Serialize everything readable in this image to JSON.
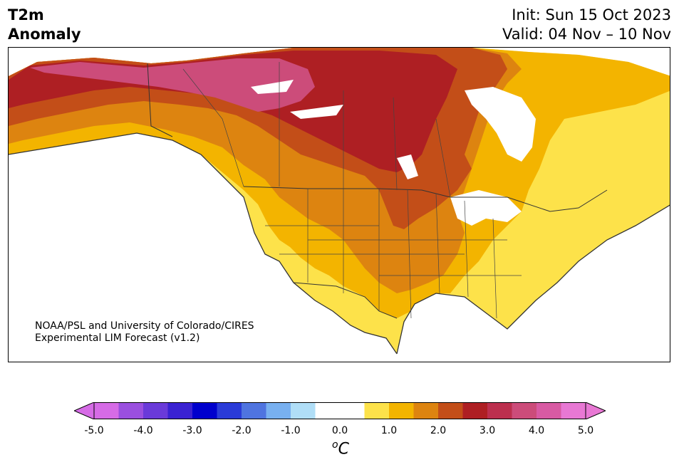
{
  "header": {
    "title_line1": "T2m",
    "title_line2": "Anomaly",
    "init_text": "Init: Sun 15 Oct 2023",
    "valid_text": "Valid: 04 Nov – 10 Nov"
  },
  "credit": {
    "line1": "NOAA/PSL and University of Colorado/CIRES",
    "line2": "Experimental LIM Forecast (v1.2)"
  },
  "colorbar": {
    "unit_base": "C",
    "unit_super": "o",
    "colors": [
      "#d66be6",
      "#9a4fdf",
      "#6a3ad9",
      "#3a22d2",
      "#0000cd",
      "#2a3bd8",
      "#4f74e0",
      "#78b0f0",
      "#b0def7",
      "#ffffff",
      "#ffffff",
      "#fde24a",
      "#f3b400",
      "#dd8410",
      "#c34e18",
      "#ae1f23",
      "#bc2f4e",
      "#cc4c7a",
      "#d85aa3",
      "#e878d4"
    ],
    "extend_low_color": "#d66be6",
    "extend_high_color": "#e878d4",
    "ticks": [
      "-5.0",
      "-4.0",
      "-3.0",
      "-2.0",
      "-1.0",
      "0.0",
      "1.0",
      "2.0",
      "3.0",
      "4.0",
      "5.0"
    ]
  },
  "map": {
    "ocean_color": "#ffffff",
    "land_anomaly_colors": {
      "white": "#ffffff",
      "yellow_light": "#fde24a",
      "yellow": "#f3b400",
      "orange": "#dd8410",
      "orange_dark": "#c34e18",
      "red": "#ae1f23",
      "red_pink": "#bc2f4e",
      "pink": "#cc4c7a"
    },
    "border_color": "#333333"
  }
}
